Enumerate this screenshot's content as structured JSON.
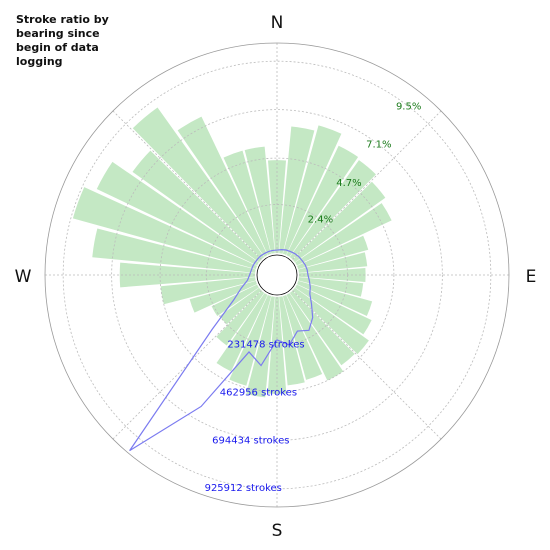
{
  "chart_data": {
    "type": "polar-bar-line",
    "title": "Stroke ratio by bearing since begin of data logging",
    "x": [
      0,
      10,
      20,
      30,
      40,
      50,
      60,
      70,
      80,
      90,
      100,
      110,
      120,
      130,
      140,
      150,
      160,
      170,
      180,
      190,
      200,
      210,
      220,
      230,
      240,
      250,
      260,
      270,
      280,
      290,
      300,
      310,
      320,
      330,
      340,
      350
    ],
    "xlim": [
      0,
      360
    ],
    "xticks": [
      {
        "value": 0,
        "label": "N"
      },
      {
        "value": 90,
        "label": "E"
      },
      {
        "value": 180,
        "label": "S"
      },
      {
        "value": 270,
        "label": "W"
      }
    ],
    "ylim": [
      0,
      10.4
    ],
    "yticks": [
      {
        "value": 2.4,
        "label": "2.4%"
      },
      {
        "value": 4.7,
        "label": "4.7%"
      },
      {
        "value": 7.1,
        "label": "7.1%"
      },
      {
        "value": 9.5,
        "label": "9.5%"
      }
    ],
    "y2lim": [
      0,
      1003071
    ],
    "y2ticks": [
      {
        "value": 231478,
        "label": "231478 strokes"
      },
      {
        "value": 462956,
        "label": "462956 strokes"
      },
      {
        "value": 694434,
        "label": "694434 strokes"
      },
      {
        "value": 925912,
        "label": "925912 strokes"
      }
    ],
    "grid": true,
    "series": [
      {
        "color": "#c4e8c4",
        "values": [
          4.6,
          6.3,
          6.6,
          6.0,
          5.9,
          5.5,
          5.2,
          3.6,
          3.4,
          3.3,
          3.2,
          3.8,
          4.1,
          4.5,
          4.4,
          4.7,
          4.3,
          4.4,
          4.8,
          5.0,
          4.6,
          4.2,
          3.2,
          2.4,
          2.5,
          3.4,
          4.7,
          6.7,
          8.1,
          9.4,
          8.8,
          7.7,
          9.1,
          7.6,
          5.3,
          5.3
        ]
      },
      {
        "color": "#7b7bf0",
        "axis": "y2",
        "values": [
          14000,
          18000,
          22000,
          24000,
          28000,
          31000,
          33000,
          38000,
          41000,
          43000,
          52000,
          64000,
          76000,
          110000,
          160000,
          200000,
          180000,
          234000,
          205000,
          334000,
          286000,
          620000,
          990000,
          300000,
          134000,
          76000,
          38000,
          26000,
          20000,
          18000,
          16000,
          15000,
          15000,
          14000,
          14000,
          14000
        ]
      }
    ]
  }
}
